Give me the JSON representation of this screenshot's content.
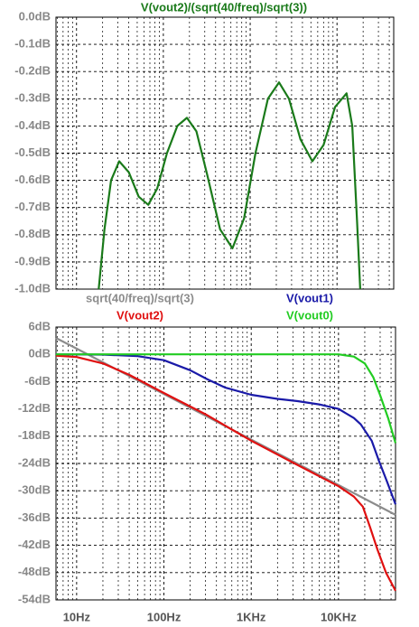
{
  "chart_data": [
    {
      "type": "line",
      "title": "V(vout2)/(sqrt(40/freq)/sqrt(3))",
      "log_x": true,
      "grid": true,
      "minor_grid": true,
      "xlim": [
        5.8,
        45000
      ],
      "xticks": [
        10,
        100,
        1000,
        10000
      ],
      "ylim": [
        -1.0,
        0.0
      ],
      "yticks": [
        {
          "value": 0.0,
          "label": "0.0dB"
        },
        {
          "value": -0.1,
          "label": "-0.1dB"
        },
        {
          "value": -0.2,
          "label": "-0.2dB"
        },
        {
          "value": -0.3,
          "label": "-0.3dB"
        },
        {
          "value": -0.4,
          "label": "-0.4dB"
        },
        {
          "value": -0.5,
          "label": "-0.5dB"
        },
        {
          "value": -0.6,
          "label": "-0.6dB"
        },
        {
          "value": -0.7,
          "label": "-0.7dB"
        },
        {
          "value": -0.8,
          "label": "-0.8dB"
        },
        {
          "value": -0.9,
          "label": "-0.9dB"
        },
        {
          "value": -1.0,
          "label": "-1.0dB"
        }
      ],
      "series": [
        {
          "color": "#1a7a1a",
          "x": [
            18,
            21,
            25,
            31,
            40,
            52,
            67,
            85,
            110,
            145,
            187,
            240,
            320,
            450,
            625,
            850,
            1150,
            1600,
            2150,
            2800,
            3800,
            5200,
            7000,
            9500,
            12900,
            15000,
            17000,
            18500
          ],
          "values": [
            -1.0,
            -0.78,
            -0.6,
            -0.53,
            -0.57,
            -0.66,
            -0.69,
            -0.63,
            -0.5,
            -0.4,
            -0.37,
            -0.42,
            -0.58,
            -0.78,
            -0.85,
            -0.74,
            -0.5,
            -0.3,
            -0.24,
            -0.3,
            -0.45,
            -0.53,
            -0.47,
            -0.33,
            -0.28,
            -0.4,
            -0.75,
            -1.0
          ]
        }
      ]
    },
    {
      "type": "line",
      "log_x": true,
      "grid": true,
      "minor_grid": true,
      "xlim": [
        5.8,
        45000
      ],
      "xticks": [
        {
          "value": 10,
          "label": "10Hz"
        },
        {
          "value": 100,
          "label": "100Hz"
        },
        {
          "value": 1000,
          "label": "1KHz"
        },
        {
          "value": 10000,
          "label": "10KHz"
        }
      ],
      "ylim": [
        -54,
        6
      ],
      "yticks": [
        {
          "value": 6,
          "label": "6dB"
        },
        {
          "value": 0,
          "label": "0dB"
        },
        {
          "value": -6,
          "label": "-6dB"
        },
        {
          "value": -12,
          "label": "-12dB"
        },
        {
          "value": -18,
          "label": "-18dB"
        },
        {
          "value": -24,
          "label": "-24dB"
        },
        {
          "value": -30,
          "label": "-30dB"
        },
        {
          "value": -36,
          "label": "-36dB"
        },
        {
          "value": -42,
          "label": "-42dB"
        },
        {
          "value": -48,
          "label": "-48dB"
        },
        {
          "value": -54,
          "label": "-54dB"
        }
      ],
      "series": [
        {
          "name": "sqrt(40/freq)/sqrt(3)",
          "color": "#8c8c8c",
          "x": [
            5.8,
            10,
            100,
            1000,
            10000,
            45000
          ],
          "values": [
            3.6,
            1.25,
            -8.75,
            -18.75,
            -28.75,
            -35.3
          ]
        },
        {
          "name": "V(vout1)",
          "color": "#1a1aa8",
          "x": [
            5.8,
            20,
            50,
            100,
            200,
            316,
            500,
            1000,
            2000,
            3400,
            6000,
            10000,
            15000,
            18000,
            24000,
            29000,
            36000,
            45000
          ],
          "values": [
            0,
            -0.05,
            -0.4,
            -1.3,
            -3.5,
            -5.5,
            -7.3,
            -8.9,
            -9.8,
            -10.3,
            -11,
            -12,
            -14,
            -15.4,
            -19,
            -23.4,
            -28,
            -33
          ]
        },
        {
          "name": "V(vout2)",
          "color": "#e01010",
          "x": [
            5.8,
            10,
            20,
            40,
            100,
            300,
            1000,
            3000,
            10000,
            15000,
            19000,
            23000,
            28000,
            35000,
            45000
          ],
          "values": [
            -0.3,
            -0.6,
            -2,
            -4.5,
            -8.5,
            -13.2,
            -19,
            -23.8,
            -29,
            -31.3,
            -33.5,
            -38,
            -43,
            -48,
            -52
          ]
        },
        {
          "name": "V(vout0)",
          "color": "#22cc22",
          "x": [
            5.8,
            10000,
            15000,
            20000,
            25000,
            30000,
            37000,
            45000
          ],
          "values": [
            0,
            0,
            -0.5,
            -2,
            -5,
            -9,
            -14,
            -19.5
          ]
        }
      ]
    }
  ]
}
